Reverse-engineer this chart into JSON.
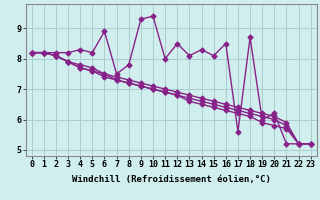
{
  "xlabel": "Windchill (Refroidissement éolien,°C)",
  "background_color": "#d0eeee",
  "grid_color": "#aacccc",
  "line_color": "#882288",
  "hours": [
    0,
    1,
    2,
    3,
    4,
    5,
    6,
    7,
    8,
    9,
    10,
    11,
    12,
    13,
    14,
    15,
    16,
    17,
    18,
    19,
    20,
    21,
    22,
    23
  ],
  "series1": [
    8.2,
    8.2,
    8.2,
    8.2,
    8.3,
    8.2,
    8.9,
    7.5,
    7.8,
    9.3,
    9.4,
    8.0,
    8.5,
    8.1,
    8.3,
    8.1,
    8.5,
    5.6,
    8.7,
    6.0,
    6.2,
    5.2,
    5.2,
    null
  ],
  "series2": [
    8.2,
    8.2,
    8.1,
    7.9,
    7.8,
    7.7,
    7.5,
    7.4,
    7.3,
    7.2,
    7.1,
    7.0,
    6.9,
    6.8,
    6.7,
    6.6,
    6.5,
    6.4,
    6.3,
    6.2,
    6.1,
    5.9,
    5.2,
    5.2
  ],
  "series3": [
    8.2,
    8.2,
    8.1,
    7.9,
    7.7,
    7.6,
    7.5,
    7.3,
    7.2,
    7.1,
    7.0,
    6.9,
    6.8,
    6.7,
    6.6,
    6.5,
    6.4,
    6.3,
    6.2,
    6.1,
    6.0,
    5.8,
    5.2,
    5.2
  ],
  "series4": [
    8.2,
    8.2,
    8.1,
    7.9,
    7.7,
    7.6,
    7.4,
    7.3,
    7.2,
    7.1,
    7.0,
    6.9,
    6.8,
    6.6,
    6.5,
    6.4,
    6.3,
    6.2,
    6.1,
    5.9,
    5.8,
    5.7,
    5.2,
    5.2
  ],
  "ylim": [
    4.8,
    9.8
  ],
  "yticks": [
    5,
    6,
    7,
    8,
    9
  ],
  "xticks": [
    0,
    1,
    2,
    3,
    4,
    5,
    6,
    7,
    8,
    9,
    10,
    11,
    12,
    13,
    14,
    15,
    16,
    17,
    18,
    19,
    20,
    21,
    22,
    23
  ],
  "marker": "D",
  "markersize": 2.5,
  "linewidth": 1.0,
  "xlabel_fontsize": 6.5,
  "tick_fontsize": 6.0
}
